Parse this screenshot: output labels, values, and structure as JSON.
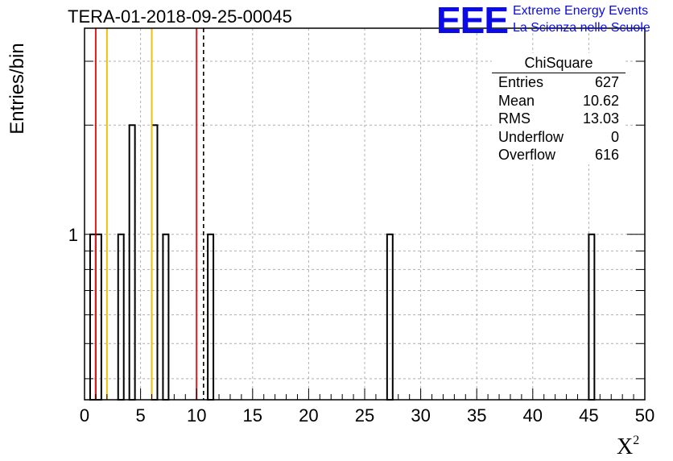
{
  "title": "TERA-01-2018-09-25-00045",
  "logo": {
    "mark": "EEE",
    "line1": "Extreme Energy Events",
    "line2": "La Scienza nelle Scuole"
  },
  "colors": {
    "histogram": "#000000",
    "red_line": "#e41a1c",
    "yellow_line": "#f0c010",
    "dashed_line": "#000000",
    "grid": "#b0b0b0",
    "logo": "#0b0be8"
  },
  "stats_box": {
    "title": "ChiSquare",
    "rows": [
      {
        "label": "Entries",
        "value": "627"
      },
      {
        "label": "Mean",
        "value": "10.62"
      },
      {
        "label": "RMS",
        "value": "13.03"
      },
      {
        "label": "Underflow",
        "value": "0"
      },
      {
        "label": "Overflow",
        "value": "616"
      }
    ]
  },
  "chart_data": {
    "type": "bar",
    "title": "TERA-01-2018-09-25-00045",
    "xlabel": "χ²",
    "ylabel": "Entries/bin",
    "xlim": [
      0,
      50
    ],
    "ylim": [
      0.35,
      3.7
    ],
    "y_scale": "log",
    "grid": true,
    "x_ticks": [
      0,
      5,
      10,
      15,
      20,
      25,
      30,
      35,
      40,
      45,
      50
    ],
    "y_tick_labels": [
      "1"
    ],
    "bin_width": 0.5,
    "bins": [
      {
        "x": 0.5,
        "count": 1
      },
      {
        "x": 1.0,
        "count": 1
      },
      {
        "x": 3.0,
        "count": 1
      },
      {
        "x": 4.0,
        "count": 2
      },
      {
        "x": 6.0,
        "count": 2
      },
      {
        "x": 7.0,
        "count": 1
      },
      {
        "x": 11.0,
        "count": 1
      },
      {
        "x": 27.0,
        "count": 1
      },
      {
        "x": 45.0,
        "count": 1
      }
    ],
    "reference_lines": [
      {
        "x": 1.0,
        "color": "red"
      },
      {
        "x": 2.0,
        "color": "yellow"
      },
      {
        "x": 6.0,
        "color": "yellow"
      },
      {
        "x": 10.0,
        "color": "red"
      },
      {
        "x": 10.62,
        "color": "black",
        "style": "dashed"
      }
    ]
  }
}
